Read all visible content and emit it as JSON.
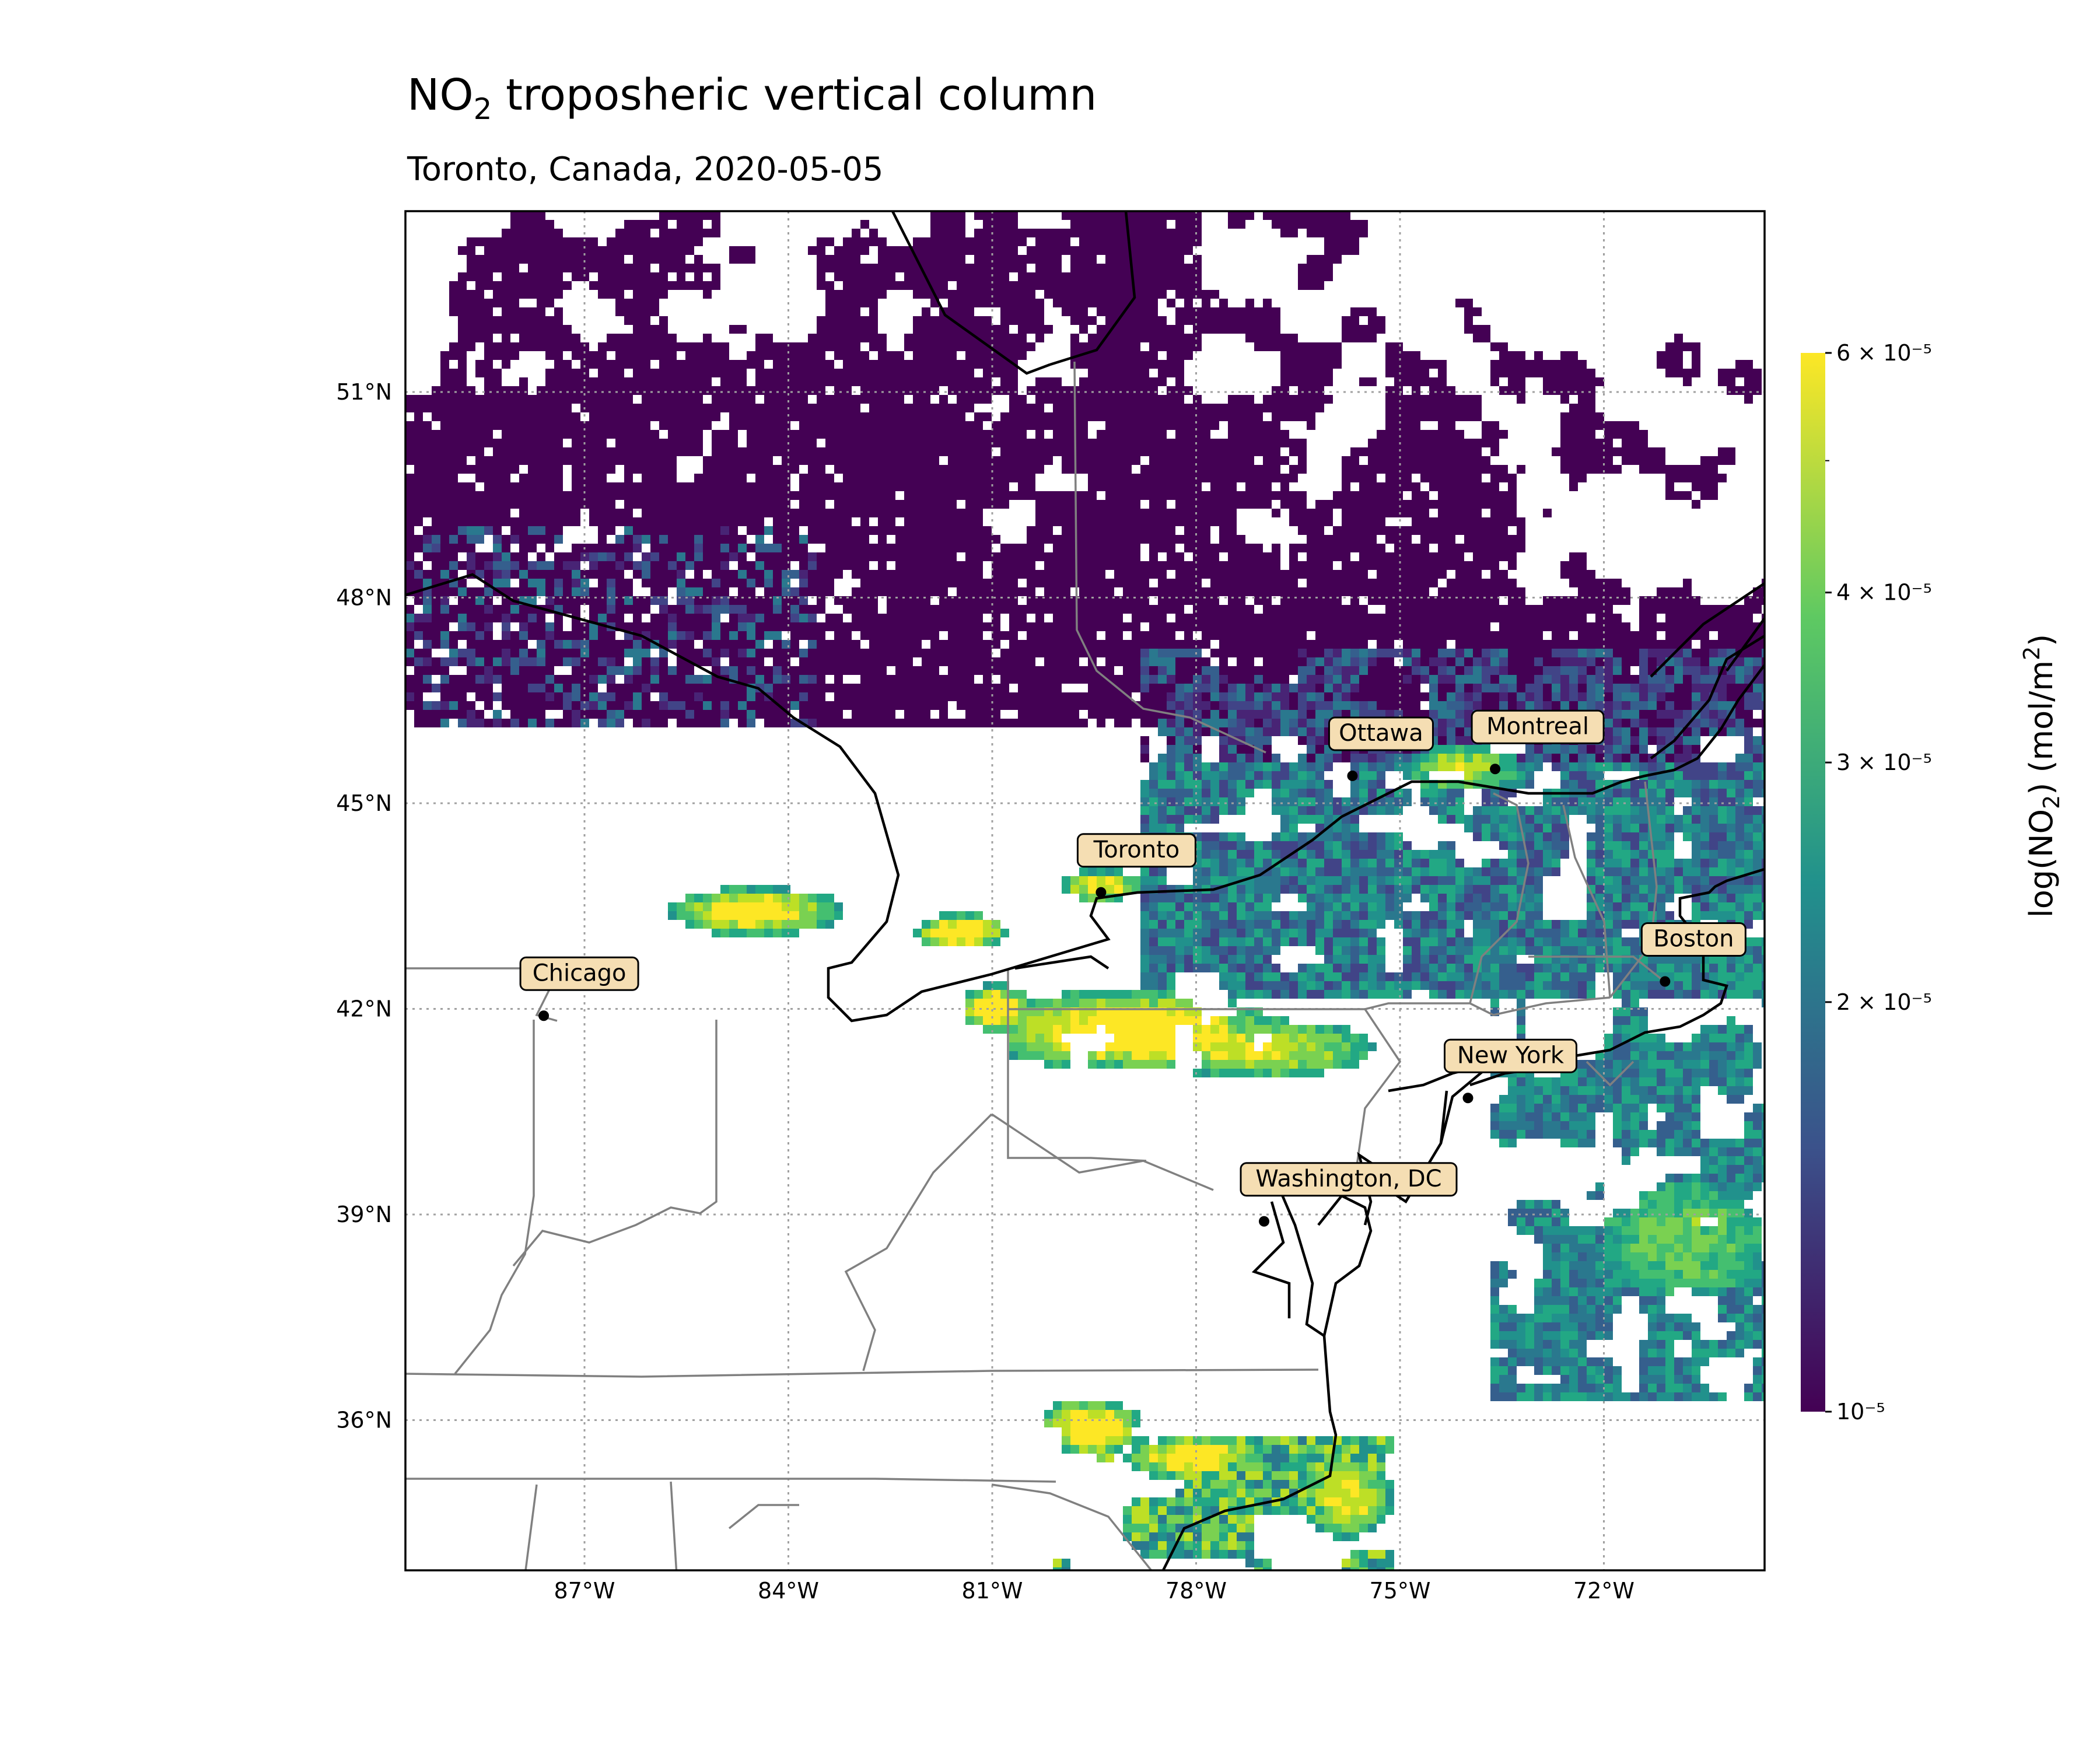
{
  "title": {
    "main": "NO",
    "sub": "2",
    "rest": " troposheric vertical column"
  },
  "subtitle": "Toronto, Canada, 2020-05-05",
  "colorbar": {
    "label_prefix": "log(NO",
    "label_sub": "2",
    "label_mid": ") (mol/m",
    "label_sup": "2",
    "label_end": ")",
    "ticks": [
      {
        "label": "6 × 10⁻⁵",
        "value": 6e-05
      },
      {
        "label": "4 × 10⁻⁵",
        "value": 4e-05
      },
      {
        "label": "3 × 10⁻⁵",
        "value": 3e-05
      },
      {
        "label": "2 × 10⁻⁵",
        "value": 2e-05
      },
      {
        "label": "10⁻⁵",
        "value": 1e-05
      }
    ],
    "scale": "log",
    "colormap": "viridis",
    "colors": [
      "#440154",
      "#3b528b",
      "#21918c",
      "#5ec962",
      "#fde725"
    ]
  },
  "map": {
    "extent": {
      "lon_min": -89.4,
      "lon_max": -69.6,
      "lat_min": 33.2,
      "lat_max": 53.6
    },
    "lat_ticks": [
      {
        "label": "51°N",
        "value": 51
      },
      {
        "label": "48°N",
        "value": 48
      },
      {
        "label": "45°N",
        "value": 45
      },
      {
        "label": "42°N",
        "value": 42
      },
      {
        "label": "39°N",
        "value": 39
      },
      {
        "label": "36°N",
        "value": 36
      }
    ],
    "lon_ticks": [
      {
        "label": "87°W",
        "value": -87
      },
      {
        "label": "84°W",
        "value": -84
      },
      {
        "label": "81°W",
        "value": -81
      },
      {
        "label": "78°W",
        "value": -78
      },
      {
        "label": "75°W",
        "value": -75
      },
      {
        "label": "72°W",
        "value": -72
      }
    ],
    "gridlines": true,
    "cities": [
      {
        "name": "Ottawa",
        "lon": -75.7,
        "lat": 45.4
      },
      {
        "name": "Montreal",
        "lon": -73.6,
        "lat": 45.5
      },
      {
        "name": "Toronto",
        "lon": -79.4,
        "lat": 43.7
      },
      {
        "name": "Boston",
        "lon": -71.1,
        "lat": 42.4
      },
      {
        "name": "Chicago",
        "lon": -87.6,
        "lat": 41.9
      },
      {
        "name": "New York",
        "lon": -74.0,
        "lat": 40.7
      },
      {
        "name": "Washington, DC",
        "lon": -77.0,
        "lat": 38.9
      }
    ]
  }
}
